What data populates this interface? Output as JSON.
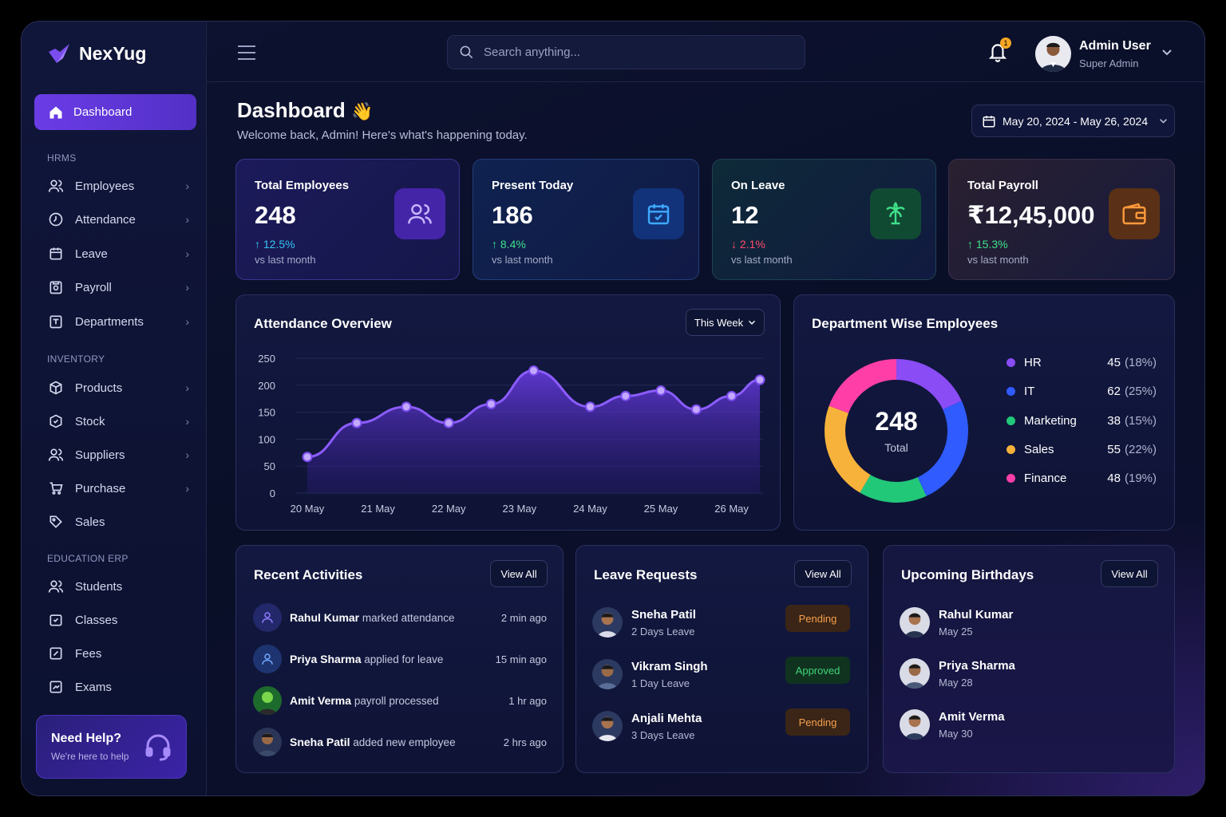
{
  "brand": {
    "name": "NexYug",
    "accent": "#6a3ce6"
  },
  "header": {
    "search_placeholder": "Search anything...",
    "notifications": "1",
    "user_name": "Admin User",
    "user_role": "Super Admin"
  },
  "sidebar": {
    "active": {
      "label": "Dashboard",
      "icon": "home-icon"
    },
    "sections": [
      {
        "title": "HRMS",
        "items": [
          {
            "label": "Employees"
          },
          {
            "label": "Attendance"
          },
          {
            "label": "Leave"
          },
          {
            "label": "Payroll"
          },
          {
            "label": "Departments"
          }
        ]
      },
      {
        "title": "INVENTORY",
        "items": [
          {
            "label": "Products"
          },
          {
            "label": "Stock"
          },
          {
            "label": "Suppliers"
          },
          {
            "label": "Purchase"
          },
          {
            "label": "Sales"
          }
        ]
      },
      {
        "title": "EDUCATION ERP",
        "items": [
          {
            "label": "Students"
          },
          {
            "label": "Classes"
          },
          {
            "label": "Fees"
          },
          {
            "label": "Exams"
          }
        ]
      }
    ],
    "help": {
      "title": "Need Help?",
      "subtitle": "We're here to help"
    }
  },
  "page": {
    "title": "Dashboard",
    "emoji": "👋",
    "subtitle": "Welcome back, Admin! Here's what's happening today.",
    "date_range": "May 20, 2024 - May 26, 2024"
  },
  "kpis": [
    {
      "label": "Total Employees",
      "value": "248",
      "change": "↑ 12.5%",
      "vs": "vs last month",
      "color": "#35c6f0",
      "icon": "users-icon"
    },
    {
      "label": "Present Today",
      "value": "186",
      "change": "↑ 8.4%",
      "vs": "vs last month",
      "color": "#3fe08a",
      "icon": "calendar-check-icon"
    },
    {
      "label": "On Leave",
      "value": "12",
      "change": "↓ 2.1%",
      "vs": "vs last month",
      "color": "#ff4b6a",
      "icon": "palm-tree-icon"
    },
    {
      "label": "Total Payroll",
      "value": "₹12,45,000",
      "change": "↑ 15.3%",
      "vs": "vs last month",
      "color": "#3fe08a",
      "icon": "wallet-icon"
    }
  ],
  "attendance": {
    "title": "Attendance Overview",
    "filter": "This Week"
  },
  "chart_data": {
    "type": "area",
    "title": "Attendance Overview",
    "categories": [
      "20 May",
      "21 May",
      "22 May",
      "23 May",
      "24 May",
      "25 May",
      "26 May"
    ],
    "x": [
      0,
      0.7,
      1.4,
      2.0,
      2.6,
      3.2,
      4.0,
      4.5,
      5.0,
      5.5,
      6.0,
      6.4
    ],
    "values": [
      67,
      130,
      160,
      130,
      165,
      227,
      160,
      180,
      190,
      155,
      180,
      210
    ],
    "ylim": [
      0,
      250
    ],
    "yticks": [
      0,
      50,
      100,
      150,
      200,
      250
    ],
    "grid": true,
    "color": "#7b4cf0"
  },
  "departments": {
    "title": "Department Wise Employees",
    "total": "248",
    "total_label": "Total",
    "items": [
      {
        "name": "HR",
        "count": "45",
        "pct": "(18%)",
        "color": "#8a4cf5"
      },
      {
        "name": "IT",
        "count": "62",
        "pct": "(25%)",
        "color": "#2f5bff"
      },
      {
        "name": "Marketing",
        "count": "38",
        "pct": "(15%)",
        "color": "#21c878"
      },
      {
        "name": "Sales",
        "count": "55",
        "pct": "(22%)",
        "color": "#f7b23b"
      },
      {
        "name": "Finance",
        "count": "48",
        "pct": "(19%)",
        "color": "#ff3ea8"
      }
    ]
  },
  "activities": {
    "title": "Recent Activities",
    "view_all": "View All",
    "items": [
      {
        "name": "Rahul Kumar",
        "action": "marked attendance",
        "time": "2 min ago"
      },
      {
        "name": "Priya Sharma",
        "action": "applied for leave",
        "time": "15 min ago"
      },
      {
        "name": "Amit Verma",
        "action": "payroll processed",
        "time": "1 hr ago"
      },
      {
        "name": "Sneha Patil",
        "action": "added new employee",
        "time": "2 hrs ago"
      }
    ]
  },
  "leaves": {
    "title": "Leave Requests",
    "view_all": "View All",
    "items": [
      {
        "name": "Sneha Patil",
        "detail": "2 Days Leave",
        "status": "Pending"
      },
      {
        "name": "Vikram Singh",
        "detail": "1 Day Leave",
        "status": "Approved"
      },
      {
        "name": "Anjali Mehta",
        "detail": "3 Days Leave",
        "status": "Pending"
      }
    ]
  },
  "birthdays": {
    "title": "Upcoming Birthdays",
    "view_all": "View All",
    "items": [
      {
        "name": "Rahul Kumar",
        "date": "May 25"
      },
      {
        "name": "Priya Sharma",
        "date": "May 28"
      },
      {
        "name": "Amit Verma",
        "date": "May 30"
      }
    ]
  }
}
